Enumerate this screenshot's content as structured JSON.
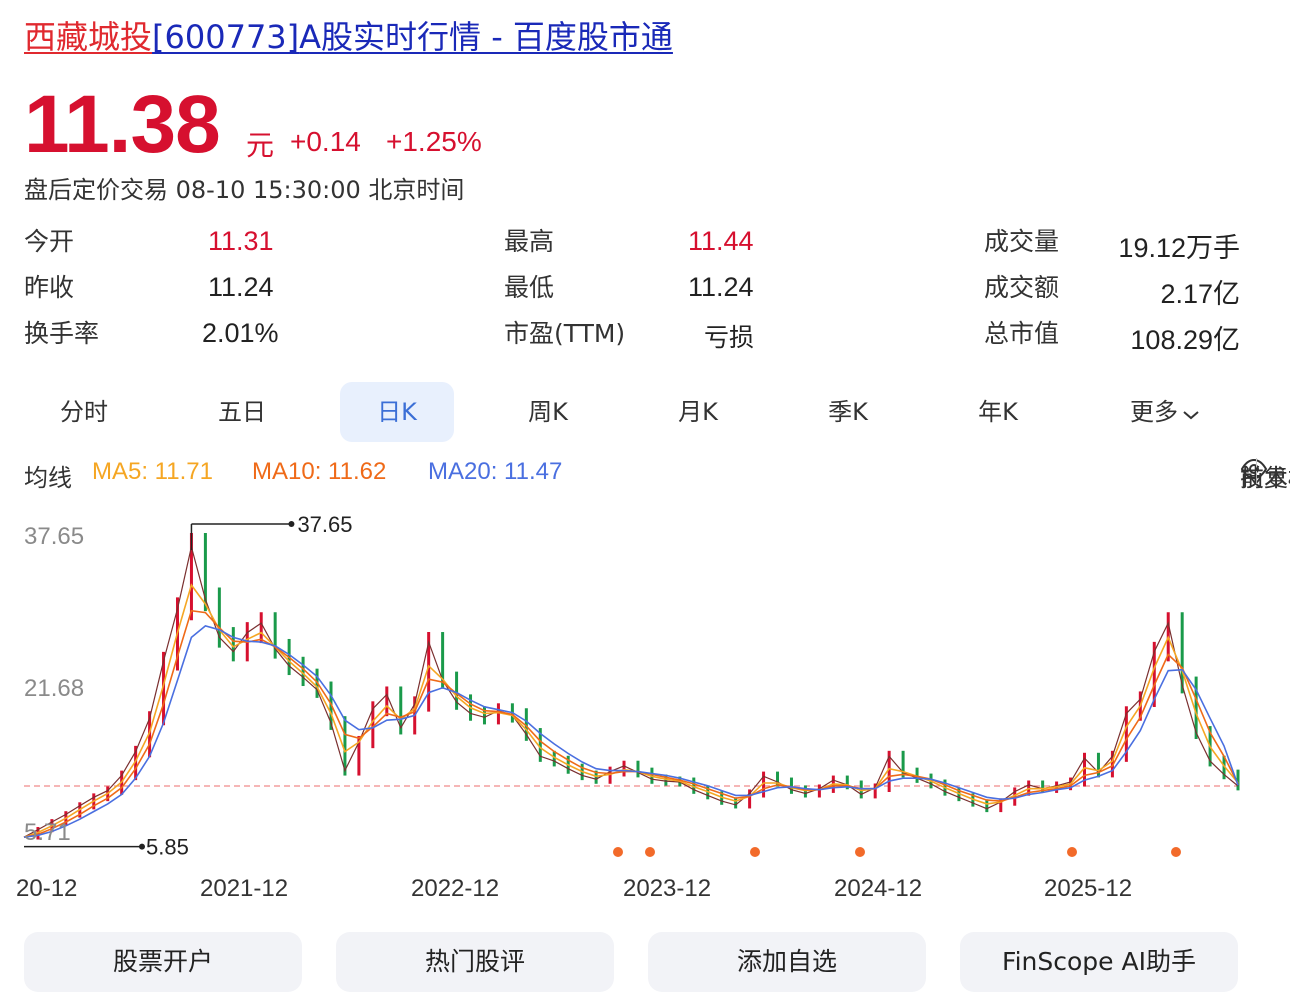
{
  "header": {
    "stock_name": "西藏城投",
    "stock_code": "[600773]",
    "title_suffix": "A股实时行情 - 百度股市通"
  },
  "quote": {
    "price": "11.38",
    "unit": "元",
    "change": "+0.14",
    "change_pct": "+1.25%",
    "status": "盘后定价交易 08-10 15:30:00 北京时间"
  },
  "stats": [
    {
      "label": "今开",
      "value": "11.31",
      "tone": "up"
    },
    {
      "label": "最高",
      "value": "11.44",
      "tone": "up"
    },
    {
      "label": "成交量",
      "value": "19.12万手",
      "tone": "flat"
    },
    {
      "label": "昨收",
      "value": "11.24",
      "tone": "flat"
    },
    {
      "label": "最低",
      "value": "11.24",
      "tone": "flat"
    },
    {
      "label": "成交额",
      "value": "2.17亿",
      "tone": "flat"
    },
    {
      "label": "换手率",
      "value": "2.01%",
      "tone": "flat"
    },
    {
      "label": "市盈(TTM)",
      "value": "亏损",
      "tone": "flat"
    },
    {
      "label": "总市值",
      "value": "108.29亿",
      "tone": "flat"
    }
  ],
  "tabs": [
    {
      "label": "分时",
      "active": false
    },
    {
      "label": "五日",
      "active": false
    },
    {
      "label": "日K",
      "active": true
    },
    {
      "label": "周K",
      "active": false
    },
    {
      "label": "月K",
      "active": false
    },
    {
      "label": "季K",
      "active": false
    },
    {
      "label": "年K",
      "active": false
    },
    {
      "label": "更多",
      "active": false
    }
  ],
  "ma": {
    "label": "均线",
    "ma5": "MA5: 11.71",
    "ma10": "MA10: 11.62",
    "ma20": "MA20: 11.47",
    "tech_label": "技术标注",
    "adjust_label": "前复权"
  },
  "colors": {
    "up": "#d6102f",
    "ma5": "#f5a623",
    "ma10": "#ef6a18",
    "ma20": "#4a6fe0",
    "tab_active_bg": "#e8f0fd"
  },
  "chart_data": {
    "type": "line",
    "y_ticks": [
      "37.65",
      "21.68",
      "5.71"
    ],
    "ylim": [
      5.71,
      37.65
    ],
    "x_ticks": [
      "20-12",
      "2021-12",
      "2022-12",
      "2023-12",
      "2024-12",
      "2025-12"
    ],
    "max_marker": "37.65",
    "min_marker": "5.85",
    "reference_line": 11.38,
    "series": [
      {
        "values": [
          6.0,
          6.8,
          7.6,
          8.4,
          9.3,
          10.2,
          10.9,
          12.5,
          15.0,
          18.5,
          24.5,
          30.0,
          36.5,
          31.0,
          27.0,
          25.5,
          27.5,
          28.5,
          25.8,
          24.0,
          22.8,
          21.5,
          18.0,
          13.0,
          16.0,
          19.5,
          21.0,
          17.5,
          20.0,
          26.5,
          22.5,
          20.2,
          19.0,
          18.6,
          19.3,
          18.8,
          16.8,
          14.5,
          14.0,
          13.2,
          12.5,
          12.1,
          12.9,
          13.5,
          12.8,
          12.1,
          11.9,
          11.8,
          11.0,
          10.4,
          9.8,
          9.4,
          10.6,
          12.4,
          11.8,
          11.0,
          10.6,
          11.1,
          12.0,
          11.5,
          10.5,
          11.2,
          14.5,
          12.8,
          12.2,
          11.6,
          10.8,
          10.2,
          9.6,
          9.0,
          9.7,
          10.8,
          11.5,
          11.1,
          11.4,
          11.8,
          14.3,
          12.8,
          14.5,
          19.0,
          20.5,
          25.5,
          28.5,
          22.0,
          17.0,
          14.0,
          12.6,
          11.38
        ]
      },
      {
        "values": [
          6.0,
          6.5,
          7.2,
          8.0,
          8.9,
          9.8,
          10.6,
          11.8,
          14.0,
          17.0,
          22.0,
          27.5,
          32.5,
          30.5,
          27.8,
          26.0,
          26.8,
          27.5,
          26.0,
          24.5,
          23.2,
          21.8,
          19.0,
          15.0,
          16.0,
          18.2,
          19.8,
          18.4,
          19.5,
          24.0,
          22.6,
          20.8,
          19.6,
          19.0,
          19.1,
          18.8,
          17.3,
          15.4,
          14.4,
          13.6,
          12.9,
          12.4,
          12.6,
          13.1,
          12.9,
          12.4,
          12.1,
          11.9,
          11.3,
          10.8,
          10.2,
          9.8,
          10.3,
          11.7,
          11.7,
          11.2,
          10.9,
          11.0,
          11.6,
          11.5,
          10.9,
          11.1,
          13.2,
          12.9,
          12.4,
          11.9,
          11.2,
          10.6,
          10.0,
          9.5,
          9.7,
          10.4,
          11.1,
          11.1,
          11.3,
          11.6,
          13.3,
          13.0,
          14.0,
          17.6,
          19.8,
          23.8,
          27.0,
          23.5,
          19.0,
          15.5,
          13.5,
          11.71
        ]
      },
      {
        "values": [
          6.0,
          6.3,
          6.9,
          7.6,
          8.4,
          9.3,
          10.1,
          11.2,
          13.2,
          15.8,
          20.0,
          25.0,
          29.8,
          29.6,
          28.0,
          26.6,
          26.5,
          26.8,
          26.0,
          24.9,
          23.7,
          22.3,
          20.0,
          16.8,
          16.4,
          17.6,
          19.0,
          18.6,
          19.2,
          22.6,
          22.3,
          21.1,
          20.0,
          19.3,
          19.2,
          18.9,
          17.7,
          16.1,
          15.0,
          14.1,
          13.3,
          12.8,
          12.7,
          12.9,
          12.9,
          12.6,
          12.3,
          12.0,
          11.6,
          11.1,
          10.6,
          10.1,
          10.3,
          11.1,
          11.5,
          11.3,
          11.0,
          11.0,
          11.4,
          11.4,
          11.1,
          11.1,
          12.4,
          12.6,
          12.4,
          12.1,
          11.5,
          10.9,
          10.4,
          9.9,
          9.8,
          10.2,
          10.7,
          10.9,
          11.1,
          11.4,
          12.5,
          12.8,
          13.5,
          16.3,
          18.6,
          22.0,
          25.2,
          23.8,
          20.5,
          17.0,
          14.5,
          11.62
        ]
      },
      {
        "values": [
          6.0,
          6.2,
          6.6,
          7.2,
          7.9,
          8.7,
          9.5,
          10.5,
          12.2,
          14.5,
          18.0,
          22.5,
          27.0,
          28.2,
          27.8,
          27.0,
          26.6,
          26.5,
          26.1,
          25.2,
          24.1,
          22.9,
          20.9,
          18.3,
          17.3,
          17.5,
          18.3,
          18.4,
          18.8,
          21.2,
          21.7,
          21.2,
          20.4,
          19.7,
          19.4,
          19.1,
          18.2,
          16.9,
          15.8,
          14.8,
          13.9,
          13.2,
          13.0,
          13.0,
          12.9,
          12.7,
          12.5,
          12.2,
          11.8,
          11.4,
          10.9,
          10.4,
          10.4,
          10.8,
          11.2,
          11.3,
          11.1,
          11.0,
          11.2,
          11.3,
          11.1,
          11.1,
          11.9,
          12.2,
          12.2,
          12.1,
          11.7,
          11.2,
          10.7,
          10.2,
          10.0,
          10.1,
          10.5,
          10.7,
          11.0,
          11.2,
          12.0,
          12.4,
          13.0,
          15.0,
          17.2,
          20.5,
          23.5,
          23.6,
          21.5,
          18.5,
          15.6,
          11.47
        ]
      }
    ],
    "markers": [
      {
        "x_tick": "2023-12"
      },
      {
        "x_tick": "2023-12"
      },
      {
        "x_tick": "2023-12"
      },
      {
        "x_tick": "2024-12"
      },
      {
        "x_tick": "2025-12"
      },
      {
        "x_tick": "2025-12"
      }
    ],
    "grid": false
  },
  "actions": [
    {
      "label": "股票开户"
    },
    {
      "label": "热门股评"
    },
    {
      "label": "添加自选"
    },
    {
      "label": "FinScope AI助手"
    }
  ]
}
